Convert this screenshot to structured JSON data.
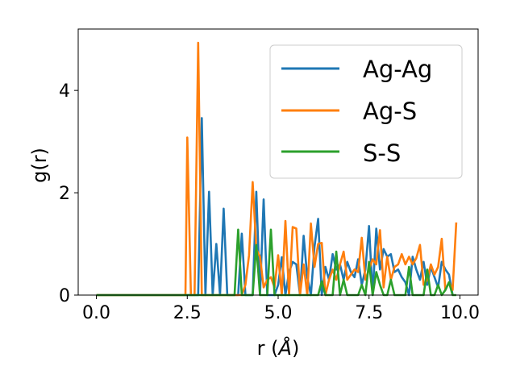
{
  "chart_data": {
    "type": "line",
    "title": "",
    "xlabel_main": "r (",
    "xlabel_unit": "Å",
    "xlabel_close": ")",
    "ylabel": "g(r)",
    "xlim": [
      -0.5,
      10.5
    ],
    "ylim": [
      0,
      5.2
    ],
    "xticks": [
      0.0,
      2.5,
      5.0,
      7.5,
      10.0
    ],
    "xtick_labels": [
      "0.0",
      "2.5",
      "5.0",
      "7.5",
      "10.0"
    ],
    "yticks": [
      0,
      2,
      4
    ],
    "ytick_labels": [
      "0",
      "2",
      "4"
    ],
    "grid": false,
    "legend_position": "top-right",
    "series": [
      {
        "name": "Ag-Ag",
        "color": "#1f77b4",
        "x": [
          0.0,
          2.7,
          2.8,
          2.9,
          3.0,
          3.1,
          3.2,
          3.3,
          3.4,
          3.5,
          3.6,
          3.7,
          3.8,
          3.9,
          4.0,
          4.1,
          4.2,
          4.3,
          4.4,
          4.5,
          4.6,
          4.7,
          4.8,
          4.9,
          5.0,
          5.1,
          5.2,
          5.3,
          5.4,
          5.5,
          5.6,
          5.7,
          5.8,
          5.9,
          6.0,
          6.1,
          6.2,
          6.3,
          6.4,
          6.5,
          6.6,
          6.7,
          6.8,
          6.9,
          7.0,
          7.1,
          7.2,
          7.3,
          7.4,
          7.5,
          7.6,
          7.7,
          7.8,
          7.9,
          8.0,
          8.1,
          8.2,
          8.3,
          8.4,
          8.5,
          8.6,
          8.7,
          8.8,
          8.9,
          9.0,
          9.1,
          9.2,
          9.3,
          9.4,
          9.5,
          9.6,
          9.7,
          9.8
        ],
        "values": [
          0,
          0,
          0,
          3.46,
          0,
          2.02,
          0,
          1.0,
          0,
          1.69,
          0,
          0,
          0,
          0,
          1.2,
          0,
          0,
          0,
          2.02,
          0,
          1.87,
          0,
          0,
          0,
          0.2,
          0.74,
          0,
          0.45,
          0.65,
          0.6,
          0,
          1.16,
          0.35,
          0,
          0.95,
          1.49,
          0,
          0.55,
          0.3,
          0.8,
          0.5,
          0.6,
          0.3,
          0.65,
          0.45,
          0.35,
          0.7,
          0.2,
          0.5,
          1.35,
          0,
          1.3,
          0.5,
          0.9,
          0.75,
          0.8,
          0.45,
          0.5,
          0.35,
          0.25,
          0,
          0.75,
          0.5,
          0.3,
          0.65,
          0.2,
          0.55,
          0.35,
          0.15,
          0.65,
          0.5,
          0.4,
          0
        ]
      },
      {
        "name": "Ag-S",
        "color": "#ff7f0e",
        "x": [
          0.0,
          2.45,
          2.5,
          2.6,
          2.7,
          2.8,
          2.9,
          3.0,
          3.5,
          4.0,
          4.1,
          4.2,
          4.3,
          4.4,
          4.5,
          4.6,
          4.7,
          4.8,
          4.9,
          5.0,
          5.1,
          5.2,
          5.3,
          5.4,
          5.5,
          5.6,
          5.7,
          5.8,
          5.9,
          6.0,
          6.1,
          6.2,
          6.3,
          6.4,
          6.5,
          6.6,
          6.7,
          6.8,
          6.9,
          7.0,
          7.1,
          7.2,
          7.3,
          7.4,
          7.5,
          7.6,
          7.7,
          7.8,
          7.9,
          8.0,
          8.1,
          8.2,
          8.3,
          8.4,
          8.5,
          8.6,
          8.7,
          8.8,
          8.9,
          9.0,
          9.1,
          9.2,
          9.3,
          9.4,
          9.5,
          9.6,
          9.7,
          9.8,
          9.9
        ],
        "values": [
          0,
          0,
          3.08,
          0,
          0,
          4.93,
          0,
          0,
          0,
          0,
          0.2,
          0.78,
          2.21,
          0.9,
          0.75,
          0.15,
          0.3,
          0.35,
          0.15,
          0.78,
          0,
          1.45,
          0,
          1.33,
          1.3,
          0,
          0.6,
          0,
          1.4,
          0.55,
          1.0,
          1.02,
          0,
          0.3,
          0.5,
          0.3,
          0.6,
          0.85,
          0.3,
          0.4,
          0.5,
          0.45,
          1.12,
          0.3,
          0.5,
          0.7,
          0.6,
          1.27,
          0.15,
          0.75,
          0.3,
          0.55,
          0.6,
          0.8,
          0.6,
          0.75,
          0.6,
          0.72,
          0.98,
          0.2,
          0.3,
          0.6,
          0.4,
          0.55,
          1.1,
          0.1,
          0.25,
          0.1,
          1.42
        ]
      },
      {
        "name": "S-S",
        "color": "#2ca02c",
        "x": [
          0.0,
          3.8,
          3.9,
          4.0,
          4.1,
          4.2,
          4.3,
          4.4,
          4.5,
          4.6,
          4.7,
          4.8,
          4.9,
          5.0,
          5.1,
          5.2,
          5.3,
          5.4,
          5.5,
          5.6,
          5.7,
          5.8,
          5.9,
          6.0,
          6.1,
          6.2,
          6.3,
          6.4,
          6.5,
          6.6,
          6.7,
          6.8,
          6.9,
          7.0,
          7.1,
          7.2,
          7.3,
          7.4,
          7.5,
          7.6,
          7.7,
          7.8,
          7.9,
          8.0,
          8.1,
          8.2,
          8.3,
          8.4,
          8.5,
          8.6,
          8.7,
          8.8,
          8.9,
          9.0,
          9.1,
          9.2,
          9.3,
          9.4,
          9.5,
          9.6,
          9.7,
          9.8,
          9.9
        ],
        "values": [
          0,
          0,
          1.28,
          0,
          0,
          0,
          0,
          0.98,
          0,
          0,
          0,
          1.28,
          0,
          0,
          0,
          0,
          0,
          0,
          0,
          0,
          0,
          0,
          0,
          0,
          0,
          0.27,
          0,
          0,
          0,
          0.85,
          0,
          0.3,
          0,
          0,
          0,
          0,
          0.2,
          0,
          0.65,
          0,
          0.45,
          0.2,
          0,
          0,
          0.3,
          0,
          0,
          0,
          0,
          0.55,
          0,
          0,
          0,
          0,
          0.5,
          0,
          0,
          0.2,
          0,
          0.1,
          0.25,
          0,
          0
        ]
      }
    ]
  }
}
